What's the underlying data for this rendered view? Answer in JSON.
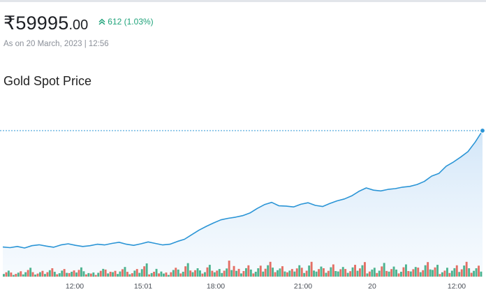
{
  "header": {
    "price_main": "₹59995",
    "price_decimal": ".00",
    "change_text": "612 (1.03%)",
    "as_of": "As on 20 March, 2023 | 12:56",
    "title": "Gold Spot Price"
  },
  "colors": {
    "line": "#2b95d6",
    "area_top": "#d3e6f8",
    "up": "#1fa37a",
    "vol_green": "#2ea67c",
    "vol_red": "#e0564a"
  },
  "icons": {
    "change": "double-chevron-up-icon"
  },
  "chart_data": {
    "type": "area",
    "x_tick_labels": [
      "12:00",
      "15:01",
      "18:00",
      "21:00",
      "20",
      "12:00"
    ],
    "series": [
      {
        "values": [
          59383,
          59380,
          59386,
          59378,
          59390,
          59395,
          59388,
          59382,
          59394,
          59400,
          59392,
          59386,
          59390,
          59398,
          59394,
          59402,
          59408,
          59398,
          59392,
          59400,
          59410,
          59402,
          59394,
          59398,
          59412,
          59424,
          59448,
          59472,
          59492,
          59510,
          59526,
          59534,
          59540,
          59548,
          59562,
          59586,
          59606,
          59618,
          59600,
          59598,
          59594,
          59608,
          59616,
          59602,
          59596,
          59612,
          59626,
          59636,
          59652,
          59676,
          59694,
          59682,
          59678,
          59686,
          59690,
          59698,
          59702,
          59712,
          59728,
          59756,
          59770,
          59808,
          59830,
          59856,
          59885,
          59935,
          59995
        ]
      }
    ],
    "last_value": 59995
  },
  "volume_data": [
    4,
    2,
    3,
    6,
    2,
    3,
    5,
    2,
    4,
    3,
    7,
    3,
    2,
    5,
    4,
    3,
    6,
    2,
    4,
    8,
    3,
    5,
    2,
    6,
    4,
    9,
    5,
    3,
    7,
    4,
    6,
    12,
    5,
    8,
    4,
    7,
    10,
    5,
    6,
    4,
    9,
    6,
    11,
    7,
    5,
    8,
    6,
    4,
    7,
    9,
    5,
    6,
    10,
    7,
    4,
    8,
    6,
    5,
    9,
    7,
    4,
    6,
    8,
    11,
    5,
    7
  ],
  "volume_up": [
    1,
    0,
    1,
    1,
    0,
    1,
    0,
    1,
    1,
    0,
    1,
    1,
    0,
    1,
    0,
    1,
    1,
    0,
    1,
    1,
    0,
    1,
    1,
    0,
    1,
    0,
    1,
    1,
    0,
    1,
    1,
    0,
    1,
    0,
    1,
    1,
    0,
    1,
    1,
    0,
    1,
    0,
    1,
    1,
    0,
    1,
    1,
    0,
    1,
    0,
    1,
    1,
    0,
    1,
    1,
    0,
    1,
    0,
    1,
    1,
    0,
    1,
    1,
    0,
    1,
    1
  ]
}
